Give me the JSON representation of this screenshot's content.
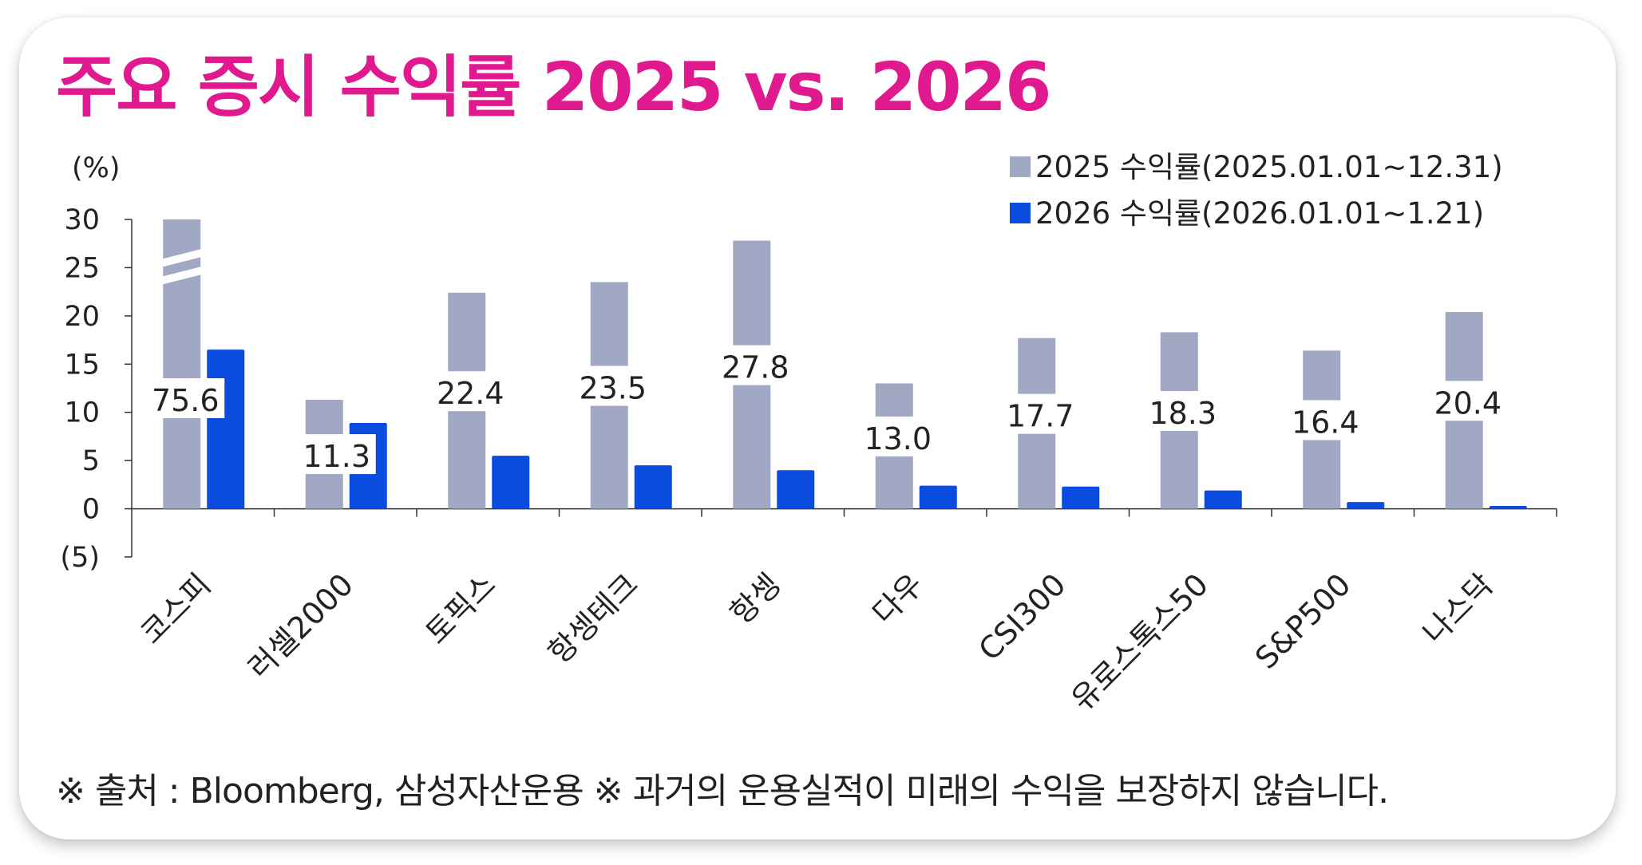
{
  "title": "주요 증시 수익률 2025 vs. 2026",
  "footer": "※  출처 : Bloomberg, 삼성자산운용 ※ 과거의 운용실적이 미래의 수익을 보장하지 않습니다.",
  "colors": {
    "title": "#e0198e",
    "series_2025": "#a1a8c4",
    "series_2026": "#0a4be0"
  },
  "chart_data": {
    "type": "bar",
    "ylabel": "(%)",
    "ylim": [
      -5,
      30
    ],
    "yticks": [
      30,
      25,
      20,
      15,
      10,
      5,
      0,
      -5
    ],
    "ytick_labels": [
      "30",
      "25",
      "20",
      "15",
      "10",
      "5",
      "0",
      "(5)"
    ],
    "categories": [
      "코스피",
      "러셀2000",
      "토픽스",
      "항셍테크",
      "항셍",
      "다우",
      "CSI300",
      "유로스톡스50",
      "S&P500",
      "나스닥"
    ],
    "series": [
      {
        "name": "2025 수익률(2025.01.01~12.31)",
        "values": [
          75.6,
          11.3,
          22.4,
          23.5,
          27.8,
          13.0,
          17.7,
          18.3,
          16.4,
          20.4
        ],
        "labels": [
          "75.6",
          "11.3",
          "22.4",
          "23.5",
          "27.8",
          "13.0",
          "17.7",
          "18.3",
          "16.4",
          "20.4"
        ]
      },
      {
        "name": "2026 수익률(2026.01.01~1.21)",
        "values": [
          16.5,
          8.9,
          5.5,
          4.5,
          4.0,
          2.4,
          2.3,
          1.9,
          0.7,
          0.3
        ]
      }
    ],
    "axis_break": "코스피",
    "legend": "top-right"
  }
}
